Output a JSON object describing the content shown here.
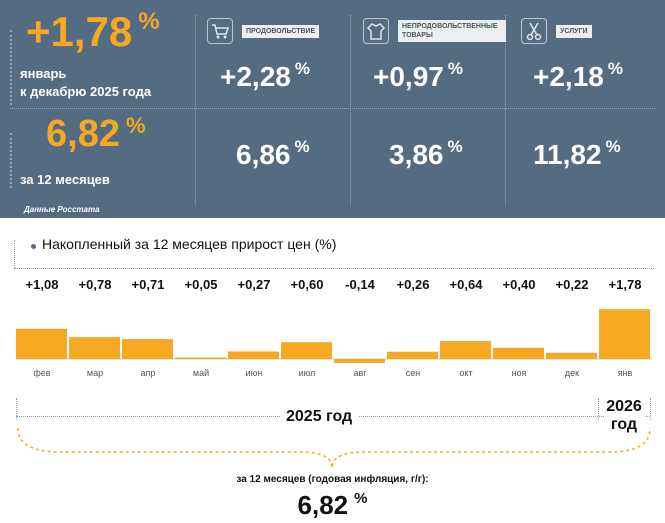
{
  "header": {
    "monthly_value": "+1,78",
    "monthly_caption_1": "январь",
    "monthly_caption_2": "к декабрю 2025 года",
    "annual_value": "6,82",
    "annual_caption": "за 12 месяцев",
    "percent_sign": "%",
    "source": "Данные Росстата",
    "categories": [
      {
        "label": "ПРОДОВОЛЬСТВИЕ",
        "icon": "shopping-cart-icon",
        "monthly": "+2,28",
        "annual": "6,86"
      },
      {
        "label": "НЕПРОДОВОЛЬСТВЕННЫЕ ТОВАРЫ",
        "icon": "clothing-icon",
        "monthly": "+0,97",
        "annual": "3,86"
      },
      {
        "label": "УСЛУГИ",
        "icon": "scissors-icon",
        "monthly": "+2,18",
        "annual": "11,82"
      }
    ]
  },
  "colors": {
    "accent": "#f7a823",
    "panel": "#546c82"
  },
  "chart_data": {
    "type": "bar",
    "title": "Накопленный за 12 месяцев прирост цен (%)",
    "categories": [
      "фев",
      "мар",
      "апр",
      "май",
      "июн",
      "июл",
      "авг",
      "сен",
      "окт",
      "ноя",
      "дек",
      "янв"
    ],
    "values": [
      1.08,
      0.78,
      0.71,
      0.05,
      0.27,
      0.6,
      -0.14,
      0.26,
      0.64,
      0.4,
      0.22,
      1.78
    ],
    "value_labels": [
      "+1,08",
      "+0,78",
      "+0,71",
      "+0,05",
      "+0,27",
      "+0,60",
      "-0,14",
      "+0,26",
      "+0,64",
      "+0,40",
      "+0,22",
      "+1,78"
    ],
    "year_groups": [
      "2025 год",
      "2026 год"
    ]
  },
  "footer": {
    "caption": "за 12 месяцев (годовая инфляция, г/г):",
    "value": "6,82"
  }
}
